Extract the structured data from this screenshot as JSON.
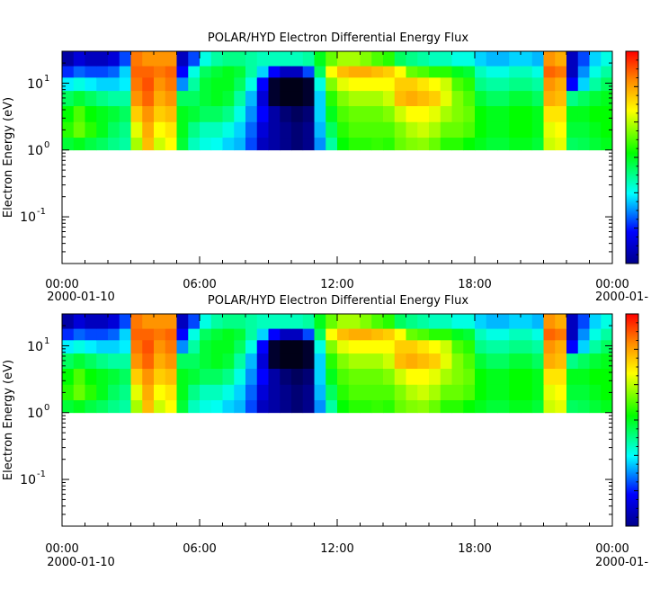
{
  "chart_data": [
    {
      "type": "heatmap",
      "title": "POLAR/HYD  Electron Differential Energy Flux",
      "ylabel": "Electron Energy (eV)",
      "yscale": "log",
      "ylim": [
        0.02,
        30
      ],
      "y_ticks": [
        {
          "base": "10",
          "exp": "1",
          "value": 10
        },
        {
          "base": "10",
          "exp": "0",
          "value": 1
        },
        {
          "base": "10",
          "exp": "-1",
          "value": 0.1
        }
      ],
      "x_ticks": [
        {
          "label": "00:00",
          "hour": 0
        },
        {
          "label": "06:00",
          "hour": 6
        },
        {
          "label": "12:00",
          "hour": 12
        },
        {
          "label": "18:00",
          "hour": 18
        },
        {
          "label": "00:00",
          "hour": 24
        }
      ],
      "date_start": "2000-01-10",
      "date_end": "2000-01-",
      "data_energy_range": [
        1,
        30
      ],
      "colorbar": {
        "colors": [
          "#00008b",
          "#0000ff",
          "#00ffff",
          "#00ff00",
          "#ffff00",
          "#ff8c00",
          "#ff0000"
        ]
      },
      "hours": [
        0,
        0.5,
        1,
        1.5,
        2,
        2.5,
        3,
        3.5,
        4,
        4.5,
        5,
        5.5,
        6,
        6.5,
        7,
        7.5,
        8,
        8.5,
        9,
        9.5,
        10,
        10.5,
        11,
        11.5,
        12,
        12.5,
        13,
        13.5,
        14,
        14.5,
        15,
        15.5,
        16,
        16.5,
        17,
        17.5,
        18,
        18.5,
        19,
        19.5,
        20,
        20.5,
        21,
        21.5,
        22,
        22.5,
        23,
        23.5
      ],
      "energies": [
        1.2,
        2,
        3.5,
        6,
        10,
        15,
        22
      ],
      "flux_levels": [
        [
          0.48,
          0.5,
          0.47,
          0.45,
          0.42,
          0.4,
          0.65,
          0.8,
          0.68,
          0.72,
          0.48,
          0.38,
          0.35,
          0.34,
          0.3,
          0.28,
          0.2,
          0.1,
          0.08,
          0.06,
          0.05,
          0.06,
          0.25,
          0.4,
          0.52,
          0.55,
          0.55,
          0.56,
          0.55,
          0.6,
          0.62,
          0.63,
          0.6,
          0.55,
          0.55,
          0.52,
          0.5,
          0.48,
          0.48,
          0.5,
          0.5,
          0.48,
          0.68,
          0.7,
          0.45,
          0.46,
          0.48,
          0.5
        ],
        [
          0.55,
          0.6,
          0.55,
          0.5,
          0.45,
          0.42,
          0.7,
          0.82,
          0.72,
          0.75,
          0.5,
          0.42,
          0.38,
          0.38,
          0.35,
          0.3,
          0.22,
          0.12,
          0.08,
          0.06,
          0.05,
          0.06,
          0.28,
          0.45,
          0.55,
          0.58,
          0.58,
          0.58,
          0.58,
          0.62,
          0.66,
          0.68,
          0.65,
          0.6,
          0.6,
          0.58,
          0.52,
          0.5,
          0.5,
          0.52,
          0.52,
          0.5,
          0.7,
          0.72,
          0.48,
          0.48,
          0.5,
          0.52
        ],
        [
          0.52,
          0.58,
          0.52,
          0.5,
          0.48,
          0.45,
          0.78,
          0.85,
          0.78,
          0.8,
          0.5,
          0.48,
          0.45,
          0.45,
          0.42,
          0.35,
          0.25,
          0.15,
          0.08,
          0.05,
          0.04,
          0.05,
          0.3,
          0.5,
          0.58,
          0.6,
          0.6,
          0.6,
          0.62,
          0.68,
          0.72,
          0.72,
          0.7,
          0.65,
          0.62,
          0.6,
          0.52,
          0.5,
          0.5,
          0.52,
          0.52,
          0.5,
          0.75,
          0.75,
          0.5,
          0.5,
          0.52,
          0.52
        ],
        [
          0.45,
          0.48,
          0.45,
          0.42,
          0.4,
          0.4,
          0.85,
          0.9,
          0.82,
          0.85,
          0.45,
          0.45,
          0.48,
          0.5,
          0.48,
          0.4,
          0.28,
          0.12,
          0.02,
          0.01,
          0.01,
          0.02,
          0.3,
          0.55,
          0.62,
          0.65,
          0.65,
          0.65,
          0.68,
          0.8,
          0.82,
          0.8,
          0.78,
          0.7,
          0.62,
          0.58,
          0.48,
          0.45,
          0.45,
          0.48,
          0.48,
          0.45,
          0.82,
          0.8,
          0.42,
          0.45,
          0.48,
          0.5
        ],
        [
          0.32,
          0.35,
          0.32,
          0.3,
          0.3,
          0.32,
          0.88,
          0.92,
          0.85,
          0.88,
          0.25,
          0.4,
          0.48,
          0.5,
          0.5,
          0.45,
          0.35,
          0.15,
          0.02,
          0.01,
          0.01,
          0.02,
          0.35,
          0.62,
          0.7,
          0.72,
          0.72,
          0.72,
          0.72,
          0.78,
          0.78,
          0.75,
          0.72,
          0.68,
          0.58,
          0.55,
          0.42,
          0.4,
          0.4,
          0.42,
          0.42,
          0.4,
          0.85,
          0.82,
          0.15,
          0.3,
          0.4,
          0.45
        ],
        [
          0.18,
          0.22,
          0.2,
          0.2,
          0.22,
          0.3,
          0.9,
          0.9,
          0.88,
          0.9,
          0.15,
          0.35,
          0.45,
          0.48,
          0.5,
          0.48,
          0.4,
          0.3,
          0.15,
          0.1,
          0.1,
          0.2,
          0.45,
          0.72,
          0.8,
          0.82,
          0.82,
          0.8,
          0.78,
          0.72,
          0.6,
          0.58,
          0.55,
          0.55,
          0.5,
          0.48,
          0.38,
          0.35,
          0.35,
          0.38,
          0.38,
          0.35,
          0.9,
          0.88,
          0.1,
          0.25,
          0.35,
          0.4
        ],
        [
          0.08,
          0.12,
          0.1,
          0.1,
          0.12,
          0.2,
          0.88,
          0.85,
          0.85,
          0.85,
          0.1,
          0.2,
          0.35,
          0.4,
          0.42,
          0.42,
          0.4,
          0.38,
          0.38,
          0.38,
          0.38,
          0.4,
          0.5,
          0.6,
          0.65,
          0.65,
          0.62,
          0.58,
          0.55,
          0.45,
          0.42,
          0.4,
          0.38,
          0.38,
          0.35,
          0.35,
          0.3,
          0.28,
          0.28,
          0.3,
          0.3,
          0.28,
          0.85,
          0.82,
          0.1,
          0.2,
          0.3,
          0.35
        ]
      ]
    },
    {
      "type": "heatmap",
      "title": "POLAR/HYD  Electron Differential Energy Flux",
      "ylabel": "Electron Energy (eV)",
      "yscale": "log",
      "ylim": [
        0.02,
        30
      ],
      "y_ticks": [
        {
          "base": "10",
          "exp": "1",
          "value": 10
        },
        {
          "base": "10",
          "exp": "0",
          "value": 1
        },
        {
          "base": "10",
          "exp": "-1",
          "value": 0.1
        }
      ],
      "x_ticks": [
        {
          "label": "00:00",
          "hour": 0
        },
        {
          "label": "06:00",
          "hour": 6
        },
        {
          "label": "12:00",
          "hour": 12
        },
        {
          "label": "18:00",
          "hour": 18
        },
        {
          "label": "00:00",
          "hour": 24
        }
      ],
      "date_start": "2000-01-10",
      "date_end": "2000-01-",
      "data_energy_range": [
        1,
        30
      ],
      "colorbar": {
        "colors": [
          "#00008b",
          "#0000ff",
          "#00ffff",
          "#00ff00",
          "#ffff00",
          "#ff8c00",
          "#ff0000"
        ]
      },
      "hours": [
        0,
        0.5,
        1,
        1.5,
        2,
        2.5,
        3,
        3.5,
        4,
        4.5,
        5,
        5.5,
        6,
        6.5,
        7,
        7.5,
        8,
        8.5,
        9,
        9.5,
        10,
        10.5,
        11,
        11.5,
        12,
        12.5,
        13,
        13.5,
        14,
        14.5,
        15,
        15.5,
        16,
        16.5,
        17,
        17.5,
        18,
        18.5,
        19,
        19.5,
        20,
        20.5,
        21,
        21.5,
        22,
        22.5,
        23,
        23.5
      ],
      "energies": [
        1.2,
        2,
        3.5,
        6,
        10,
        15,
        22
      ],
      "flux_levels": [
        [
          0.48,
          0.5,
          0.47,
          0.45,
          0.42,
          0.4,
          0.65,
          0.8,
          0.68,
          0.72,
          0.48,
          0.38,
          0.35,
          0.34,
          0.3,
          0.28,
          0.2,
          0.1,
          0.08,
          0.06,
          0.05,
          0.06,
          0.25,
          0.4,
          0.52,
          0.55,
          0.55,
          0.56,
          0.55,
          0.6,
          0.62,
          0.63,
          0.6,
          0.55,
          0.55,
          0.52,
          0.5,
          0.48,
          0.48,
          0.5,
          0.5,
          0.48,
          0.68,
          0.7,
          0.45,
          0.46,
          0.48,
          0.5
        ],
        [
          0.55,
          0.6,
          0.55,
          0.5,
          0.45,
          0.42,
          0.7,
          0.82,
          0.72,
          0.75,
          0.5,
          0.42,
          0.38,
          0.38,
          0.35,
          0.3,
          0.22,
          0.12,
          0.08,
          0.06,
          0.05,
          0.06,
          0.28,
          0.45,
          0.55,
          0.58,
          0.58,
          0.58,
          0.58,
          0.62,
          0.66,
          0.68,
          0.65,
          0.6,
          0.6,
          0.58,
          0.52,
          0.5,
          0.5,
          0.52,
          0.52,
          0.5,
          0.7,
          0.72,
          0.48,
          0.48,
          0.5,
          0.52
        ],
        [
          0.52,
          0.58,
          0.52,
          0.5,
          0.48,
          0.45,
          0.78,
          0.85,
          0.78,
          0.8,
          0.5,
          0.48,
          0.45,
          0.45,
          0.42,
          0.35,
          0.25,
          0.15,
          0.08,
          0.05,
          0.04,
          0.05,
          0.3,
          0.5,
          0.58,
          0.6,
          0.6,
          0.6,
          0.62,
          0.68,
          0.72,
          0.72,
          0.7,
          0.65,
          0.62,
          0.6,
          0.52,
          0.5,
          0.5,
          0.52,
          0.52,
          0.5,
          0.75,
          0.75,
          0.5,
          0.5,
          0.52,
          0.52
        ],
        [
          0.45,
          0.48,
          0.45,
          0.42,
          0.4,
          0.4,
          0.85,
          0.9,
          0.82,
          0.85,
          0.45,
          0.45,
          0.48,
          0.5,
          0.48,
          0.4,
          0.28,
          0.12,
          0.02,
          0.01,
          0.01,
          0.02,
          0.3,
          0.55,
          0.62,
          0.65,
          0.65,
          0.65,
          0.68,
          0.8,
          0.82,
          0.8,
          0.78,
          0.7,
          0.62,
          0.58,
          0.48,
          0.45,
          0.45,
          0.48,
          0.48,
          0.45,
          0.82,
          0.8,
          0.42,
          0.45,
          0.48,
          0.5
        ],
        [
          0.32,
          0.35,
          0.32,
          0.3,
          0.3,
          0.32,
          0.88,
          0.92,
          0.85,
          0.88,
          0.25,
          0.4,
          0.48,
          0.5,
          0.5,
          0.45,
          0.35,
          0.15,
          0.02,
          0.01,
          0.01,
          0.02,
          0.35,
          0.62,
          0.7,
          0.72,
          0.72,
          0.72,
          0.72,
          0.78,
          0.78,
          0.75,
          0.72,
          0.68,
          0.58,
          0.55,
          0.42,
          0.4,
          0.4,
          0.42,
          0.42,
          0.4,
          0.85,
          0.82,
          0.15,
          0.3,
          0.4,
          0.45
        ],
        [
          0.18,
          0.22,
          0.2,
          0.2,
          0.22,
          0.3,
          0.9,
          0.9,
          0.88,
          0.9,
          0.15,
          0.35,
          0.45,
          0.48,
          0.5,
          0.48,
          0.4,
          0.3,
          0.15,
          0.1,
          0.1,
          0.2,
          0.45,
          0.72,
          0.8,
          0.82,
          0.82,
          0.8,
          0.78,
          0.72,
          0.6,
          0.58,
          0.55,
          0.55,
          0.5,
          0.48,
          0.38,
          0.35,
          0.35,
          0.38,
          0.38,
          0.35,
          0.9,
          0.88,
          0.1,
          0.25,
          0.35,
          0.4
        ],
        [
          0.08,
          0.12,
          0.1,
          0.1,
          0.12,
          0.2,
          0.88,
          0.85,
          0.85,
          0.85,
          0.1,
          0.2,
          0.35,
          0.4,
          0.42,
          0.42,
          0.4,
          0.38,
          0.38,
          0.38,
          0.38,
          0.4,
          0.5,
          0.6,
          0.65,
          0.65,
          0.62,
          0.58,
          0.55,
          0.45,
          0.42,
          0.4,
          0.38,
          0.38,
          0.35,
          0.35,
          0.3,
          0.28,
          0.28,
          0.3,
          0.3,
          0.28,
          0.85,
          0.82,
          0.1,
          0.2,
          0.3,
          0.35
        ]
      ]
    }
  ]
}
